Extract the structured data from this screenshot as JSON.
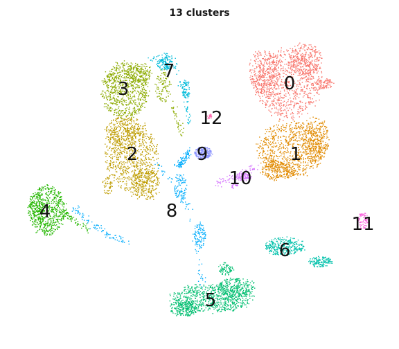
{
  "chart_data": {
    "type": "scatter",
    "title": "13 clusters",
    "xlabel": "",
    "ylabel": "",
    "axes_visible": false,
    "grid": false,
    "legend": "none",
    "clusters": [
      {
        "label": "0",
        "color": "#F8766D"
      },
      {
        "label": "1",
        "color": "#E18A00"
      },
      {
        "label": "2",
        "color": "#BE9C00"
      },
      {
        "label": "3",
        "color": "#8CAB00"
      },
      {
        "label": "4",
        "color": "#24B700"
      },
      {
        "label": "5",
        "color": "#00BE70"
      },
      {
        "label": "6",
        "color": "#00C1AB"
      },
      {
        "label": "7",
        "color": "#00BBDA"
      },
      {
        "label": "8",
        "color": "#00ACFC"
      },
      {
        "label": "9",
        "color": "#8B93FF"
      },
      {
        "label": "10",
        "color": "#D575FE"
      },
      {
        "label": "11",
        "color": "#F962DD"
      },
      {
        "label": "12",
        "color": "#FF65AC"
      }
    ]
  }
}
